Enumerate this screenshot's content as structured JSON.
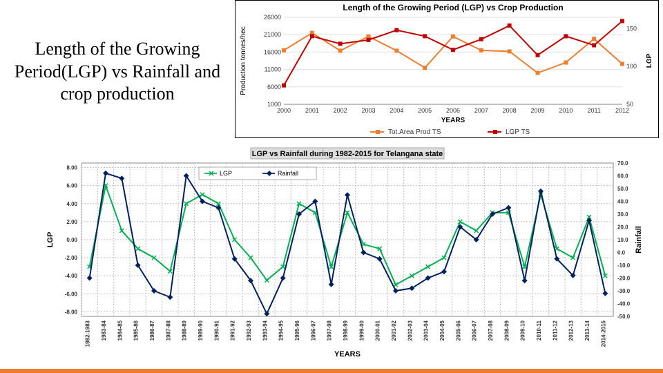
{
  "slide_title": "Length of the Growing Period(LGP) vs Rainfall and crop production",
  "top_chart": {
    "type": "line-dual-axis",
    "title": "Length of the Growing Period (LGP)  vs Crop Production",
    "years": [
      2000,
      2001,
      2002,
      2003,
      2004,
      2005,
      2006,
      2007,
      2008,
      2009,
      2010,
      2011,
      2012
    ],
    "x_axis_title": "YEARS",
    "y1": {
      "title": "Production tonnes/hec",
      "ticks": [
        1000,
        6000,
        11000,
        16000,
        21000,
        26000
      ],
      "lim": [
        1000,
        26000
      ]
    },
    "y2": {
      "title": "LGP",
      "ticks": [
        50,
        100,
        150
      ],
      "lim": [
        50,
        165
      ]
    },
    "series": [
      {
        "name": "Tot.Area Prod TS",
        "axis": "y1",
        "color": "#ed7d31",
        "marker": "square",
        "values": [
          16500,
          21500,
          16400,
          20500,
          16400,
          11500,
          20500,
          16500,
          16200,
          10000,
          13000,
          19800,
          12600
        ]
      },
      {
        "name": "LGP TS",
        "axis": "y2",
        "color": "#c00000",
        "marker": "square",
        "values": [
          75,
          140,
          130,
          135,
          148,
          140,
          122,
          136,
          154,
          115,
          140,
          128,
          160
        ]
      }
    ],
    "background_color": "#ffffff",
    "plot_border_color": "#000000"
  },
  "bottom_chart": {
    "type": "line-dual-axis",
    "title": "LGP vs Rainfall during 1982-2015 for Telangana state",
    "years_labels": [
      "1982-1983",
      "1983-84",
      "1984-85",
      "1985-86",
      "1986-87",
      "1987-88",
      "1988-89",
      "1989-90",
      "1990-91",
      "1991-92",
      "1992-93",
      "1993-94",
      "1994-95",
      "1995-96",
      "1996-97",
      "1997-98",
      "1998-99",
      "1999-00",
      "2000-01",
      "2001-02",
      "2002-03",
      "2003-04",
      "2004-05",
      "2005-06",
      "2006-07",
      "2007-08",
      "2008-09",
      "2009-10",
      "2010-11",
      "2011-12",
      "2012-13",
      "2013-14",
      "2014-2015"
    ],
    "x_axis_title": "YEARS",
    "y1": {
      "title": "LGP",
      "ticks": [
        -8.0,
        -6.0,
        -4.0,
        -2.0,
        0.0,
        2.0,
        4.0,
        6.0,
        8.0
      ],
      "lim": [
        -8.5,
        8.5
      ]
    },
    "y2": {
      "title": "Rainfall",
      "ticks": [
        -50.0,
        -40.0,
        -30.0,
        -20.0,
        -10.0,
        0.0,
        10.0,
        20.0,
        30.0,
        40.0,
        50.0,
        60.0,
        70.0
      ],
      "lim": [
        -50,
        70
      ]
    },
    "series": [
      {
        "name": "LGP",
        "axis": "y1",
        "color": "#00b050",
        "marker": "x",
        "values": [
          -3.0,
          6.0,
          1.0,
          -1.0,
          -2.0,
          -3.5,
          4.0,
          5.0,
          4.0,
          0.0,
          -2.0,
          -4.5,
          -3.0,
          4.0,
          3.0,
          -3.0,
          3.0,
          -0.5,
          -1.0,
          -5.0,
          -4.0,
          -3.0,
          -2.0,
          2.0,
          1.0,
          3.0,
          3.0,
          -3.0,
          5.0,
          -1.0,
          -2.0,
          2.5,
          -4.0
        ]
      },
      {
        "name": "Rainfall",
        "axis": "y2",
        "color": "#002060",
        "marker": "diamond",
        "values": [
          -20,
          62,
          58,
          -10,
          -30,
          -35,
          60,
          40,
          35,
          -5,
          -22,
          -48,
          -20,
          30,
          40,
          -25,
          45,
          0,
          -5,
          -30,
          -28,
          -20,
          -15,
          20,
          10,
          30,
          35,
          -22,
          48,
          -5,
          -18,
          25,
          -32
        ]
      }
    ],
    "background_color": "#ffffff",
    "grid_color": "#c0c0c0",
    "border_color": "#888888",
    "title_bg": "#dddddd"
  }
}
